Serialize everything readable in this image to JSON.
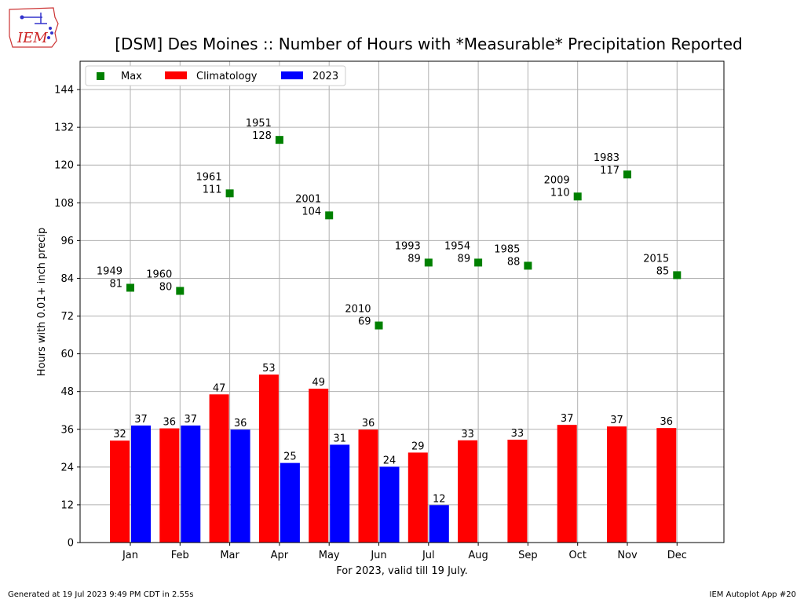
{
  "logo": {
    "text": "IEM"
  },
  "footer": {
    "left": "Generated at 19 Jul 2023 9:49 PM CDT in 2.55s",
    "right": "IEM Autoplot App #20"
  },
  "colors": {
    "climatology": "#ff0000",
    "year": "#0000ff",
    "max": "#008000"
  },
  "chart_data": {
    "type": "bar",
    "title": "[DSM] Des Moines :: Number of Hours with *Measurable* Precipitation Reported",
    "xlabel": "For 2023, valid till 19 July.",
    "ylabel": "Hours with 0.01+ inch precip",
    "categories": [
      "Jan",
      "Feb",
      "Mar",
      "Apr",
      "May",
      "Jun",
      "Jul",
      "Aug",
      "Sep",
      "Oct",
      "Nov",
      "Dec"
    ],
    "ylim": [
      0,
      153
    ],
    "yticks": [
      0,
      12,
      24,
      36,
      48,
      60,
      72,
      84,
      96,
      108,
      120,
      132,
      144
    ],
    "grid": true,
    "legend_position": "top-left",
    "series": [
      {
        "name": "Climatology",
        "type": "bar",
        "values": [
          32.4,
          36.3,
          47.1,
          53.4,
          48.9,
          35.9,
          28.6,
          32.5,
          32.7,
          37.4,
          36.9,
          36.4
        ],
        "labels": [
          "32",
          "36",
          "47",
          "53",
          "49",
          "36",
          "29",
          "33",
          "33",
          "37",
          "37",
          "36"
        ]
      },
      {
        "name": "2023",
        "type": "bar",
        "values": [
          37.2,
          37.2,
          35.9,
          25.3,
          31.1,
          24.1,
          11.9,
          null,
          null,
          null,
          null,
          null
        ],
        "labels": [
          "37",
          "37",
          "36",
          "25",
          "31",
          "24",
          "12",
          null,
          null,
          null,
          null,
          null
        ]
      },
      {
        "name": "Max",
        "type": "scatter",
        "values": [
          81,
          80,
          111,
          128,
          104,
          69,
          89,
          89,
          88,
          110,
          117,
          85
        ],
        "years": [
          "1949",
          "1960",
          "1961",
          "1951",
          "2001",
          "2010",
          "1993",
          "1954",
          "1985",
          "2009",
          "1983",
          "2015"
        ]
      }
    ]
  }
}
